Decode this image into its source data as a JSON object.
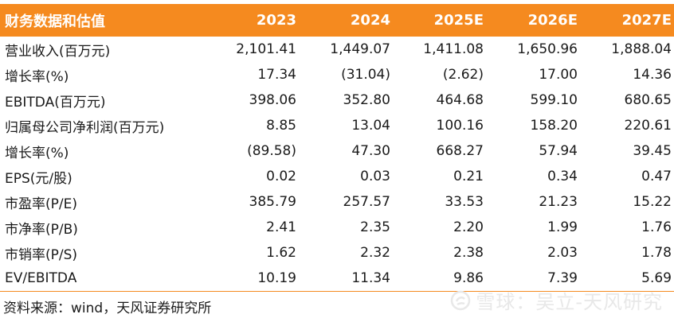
{
  "table": {
    "header": {
      "label": "财务数据和估值",
      "years": [
        "2023",
        "2024",
        "2025E",
        "2026E",
        "2027E"
      ]
    },
    "rows": [
      {
        "label": "营业收入(百万元)",
        "values": [
          "2,101.41",
          "1,449.07",
          "1,411.08",
          "1,650.96",
          "1,888.04"
        ]
      },
      {
        "label": "增长率(%)",
        "values": [
          "17.34",
          "(31.04)",
          "(2.62)",
          "17.00",
          "14.36"
        ]
      },
      {
        "label": "EBITDA(百万元)",
        "values": [
          "398.06",
          "352.80",
          "464.68",
          "599.10",
          "680.65"
        ]
      },
      {
        "label": "归属母公司净利润(百万元)",
        "values": [
          "8.85",
          "13.04",
          "100.16",
          "158.20",
          "220.61"
        ]
      },
      {
        "label": "增长率(%)",
        "values": [
          "(89.58)",
          "47.30",
          "668.27",
          "57.94",
          "39.45"
        ]
      },
      {
        "label": "EPS(元/股)",
        "values": [
          "0.02",
          "0.03",
          "0.21",
          "0.34",
          "0.47"
        ]
      },
      {
        "label": "市盈率(P/E)",
        "values": [
          "385.79",
          "257.57",
          "33.53",
          "21.23",
          "15.22"
        ]
      },
      {
        "label": "市净率(P/B)",
        "values": [
          "2.41",
          "2.35",
          "2.20",
          "1.99",
          "1.76"
        ]
      },
      {
        "label": "市销率(P/S)",
        "values": [
          "1.62",
          "2.32",
          "2.38",
          "2.03",
          "1.78"
        ]
      },
      {
        "label": "EV/EBITDA",
        "values": [
          "10.19",
          "11.34",
          "9.86",
          "7.39",
          "5.69"
        ]
      }
    ]
  },
  "source_note": "资料来源：wind，天风证券研究所",
  "watermark": "雪球：吴立-天风研究",
  "colors": {
    "header_bg": "#f58a1f",
    "header_text": "#ffffff",
    "watermark": "#e8e8e8"
  }
}
